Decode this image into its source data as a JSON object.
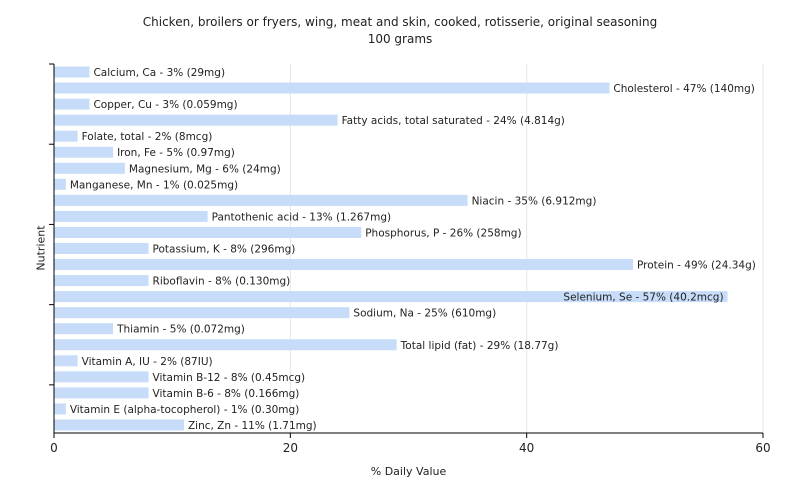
{
  "chart_data": {
    "type": "bar",
    "orientation": "horizontal",
    "title": "Chicken, broilers or fryers, wing, meat and skin, cooked, rotisserie, original seasoning",
    "subtitle": "100 grams",
    "xlabel": "% Daily Value",
    "ylabel": "Nutrient",
    "xlim": [
      0,
      60
    ],
    "xticks": [
      0,
      20,
      40,
      60
    ],
    "grid": true,
    "bar_color": "#c6dcf9",
    "categories": [
      "Calcium, Ca",
      "Cholesterol",
      "Copper, Cu",
      "Fatty acids, total saturated",
      "Folate, total",
      "Iron, Fe",
      "Magnesium, Mg",
      "Manganese, Mn",
      "Niacin",
      "Pantothenic acid",
      "Phosphorus, P",
      "Potassium, K",
      "Protein",
      "Riboflavin",
      "Selenium, Se",
      "Sodium, Na",
      "Thiamin",
      "Total lipid (fat)",
      "Vitamin A, IU",
      "Vitamin B-12",
      "Vitamin B-6",
      "Vitamin E (alpha-tocopherol)",
      "Zinc, Zn"
    ],
    "values": [
      3,
      47,
      3,
      24,
      2,
      5,
      6,
      1,
      35,
      13,
      26,
      8,
      49,
      8,
      57,
      25,
      5,
      29,
      2,
      8,
      8,
      1,
      11
    ],
    "data_labels": [
      "Calcium, Ca - 3% (29mg)",
      "Cholesterol - 47% (140mg)",
      "Copper, Cu - 3% (0.059mg)",
      "Fatty acids, total saturated - 24% (4.814g)",
      "Folate, total - 2% (8mcg)",
      "Iron, Fe - 5% (0.97mg)",
      "Magnesium, Mg - 6% (24mg)",
      "Manganese, Mn - 1% (0.025mg)",
      "Niacin - 35% (6.912mg)",
      "Pantothenic acid - 13% (1.267mg)",
      "Phosphorus, P - 26% (258mg)",
      "Potassium, K - 8% (296mg)",
      "Protein - 49% (24.34g)",
      "Riboflavin - 8% (0.130mg)",
      "Selenium, Se - 57% (40.2mcg)",
      "Sodium, Na - 25% (610mg)",
      "Thiamin - 5% (0.072mg)",
      "Total lipid (fat) - 29% (18.77g)",
      "Vitamin A, IU - 2% (87IU)",
      "Vitamin B-12 - 8% (0.45mcg)",
      "Vitamin B-6 - 8% (0.166mg)",
      "Vitamin E (alpha-tocopherol) - 1% (0.30mg)",
      "Zinc, Zn - 11% (1.71mg)"
    ]
  }
}
